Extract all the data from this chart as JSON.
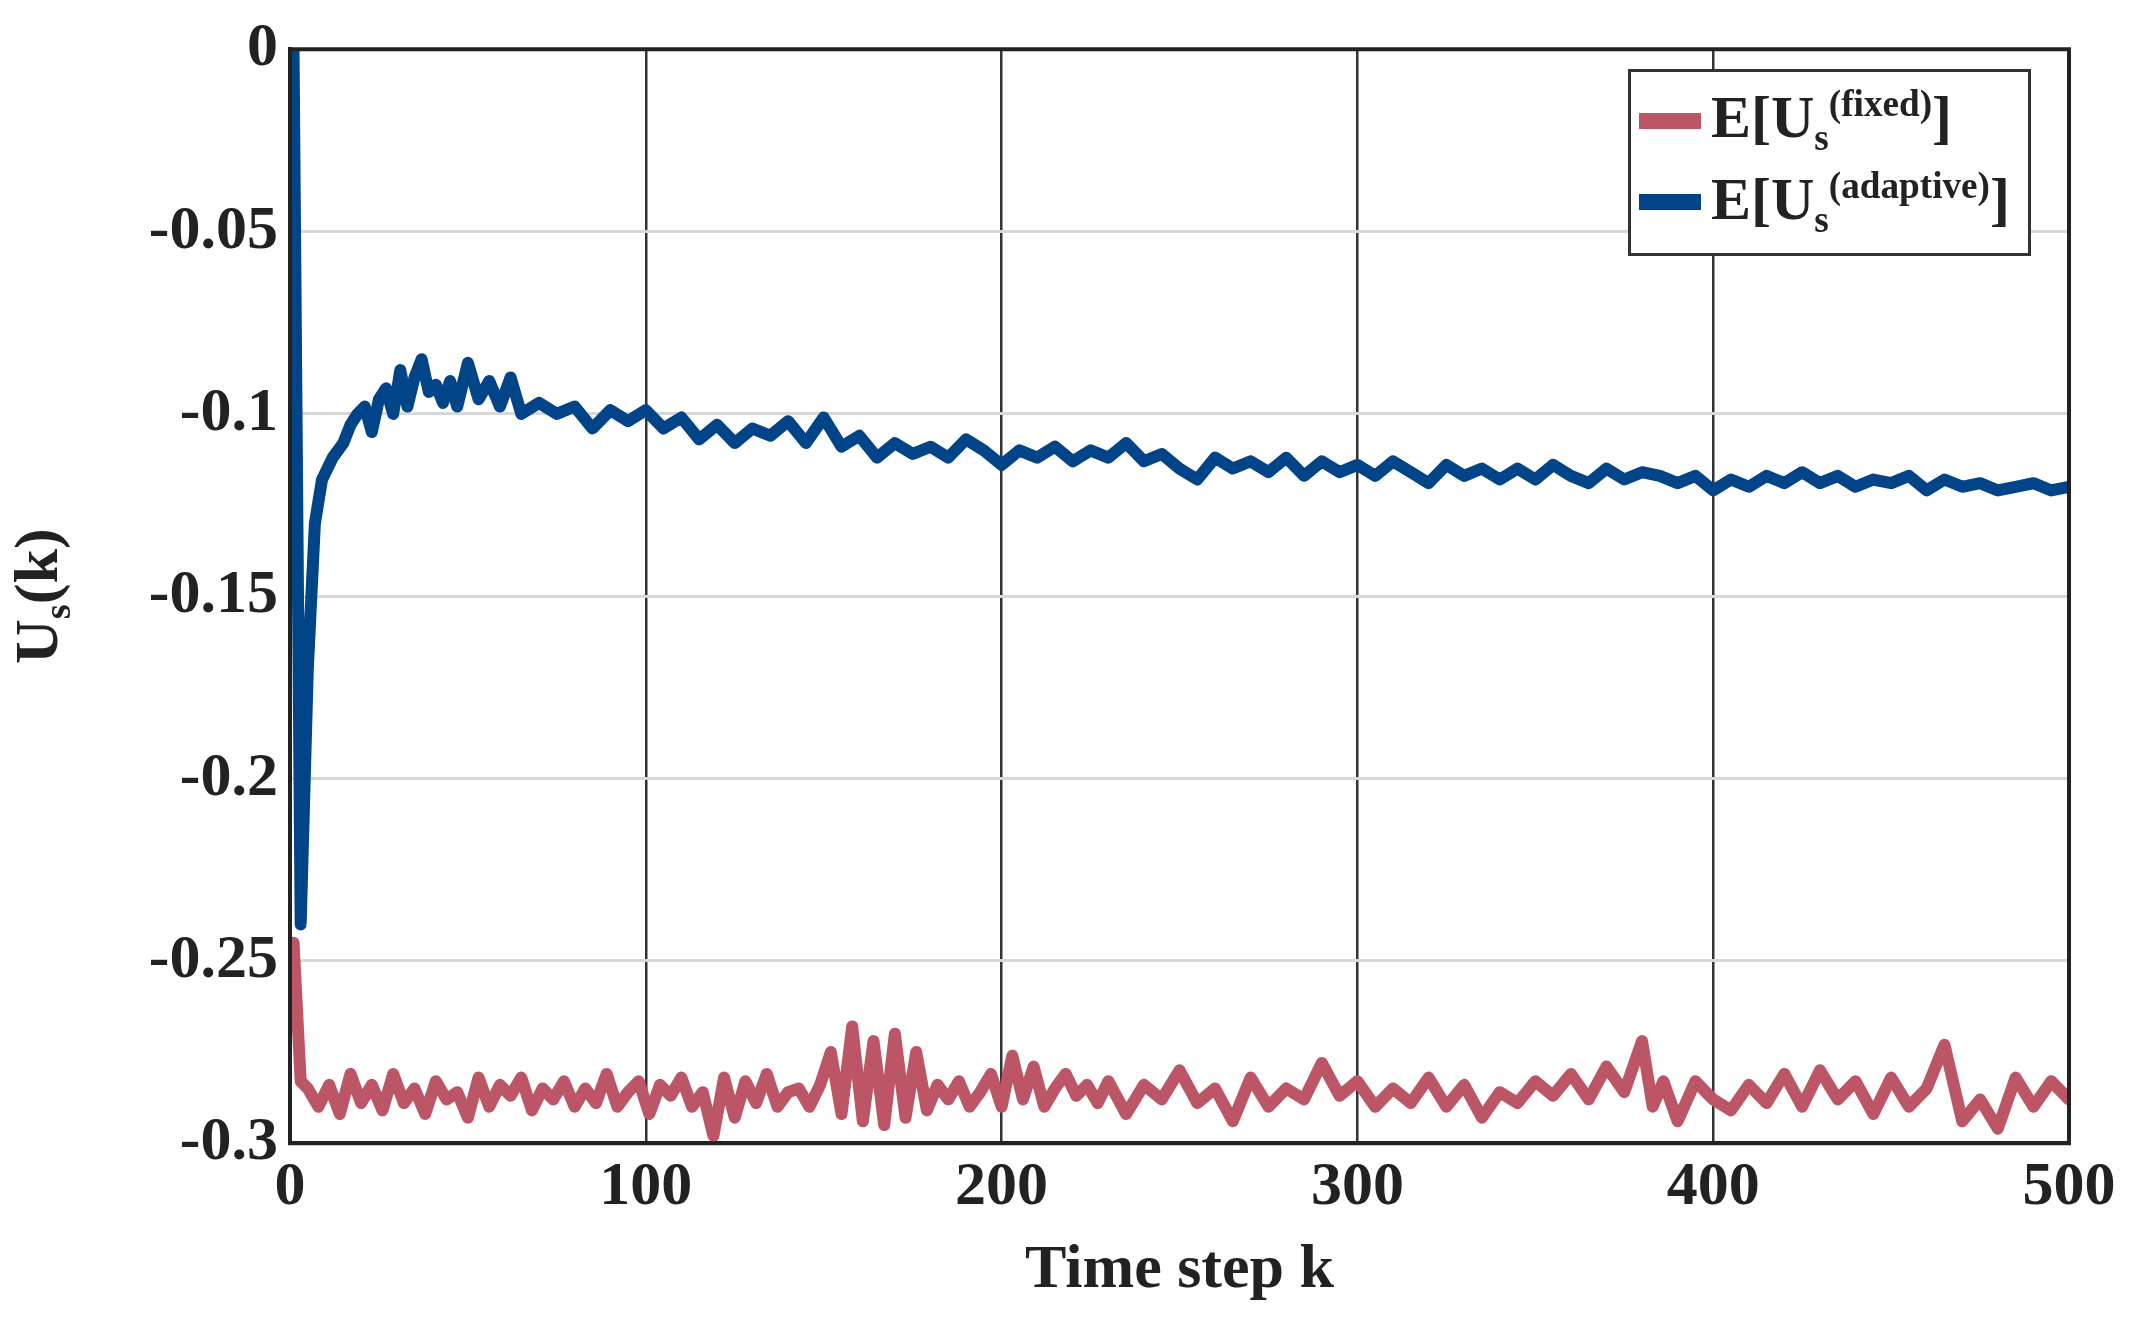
{
  "chart_data": {
    "type": "line",
    "xlabel": "Time step k",
    "ylabel": "U$_{s}$(k)",
    "xlim": [
      0,
      500
    ],
    "xticks": [
      0,
      100,
      200,
      300,
      400,
      500
    ],
    "ylim": [
      -0.3,
      0
    ],
    "yticks": [
      -0.3,
      -0.25,
      -0.2,
      -0.15,
      -0.1,
      -0.05,
      0
    ],
    "grid": true,
    "legend": "top right",
    "series": [
      {
        "name": "E[U$_{s}$$^{(fixed)}$]",
        "color": "#bc5566",
        "x": [
          1,
          3,
          5,
          8,
          11,
          14,
          17,
          20,
          23,
          26,
          29,
          32,
          35,
          38,
          41,
          44,
          47,
          50,
          53,
          56,
          59,
          62,
          65,
          68,
          71,
          74,
          77,
          80,
          83,
          86,
          89,
          92,
          95,
          98,
          101,
          104,
          107,
          110,
          113,
          116,
          119,
          122,
          125,
          128,
          131,
          134,
          137,
          140,
          143,
          146,
          149,
          152,
          155,
          158,
          161,
          164,
          167,
          170,
          173,
          176,
          179,
          182,
          185,
          188,
          191,
          194,
          197,
          200,
          203,
          206,
          209,
          212,
          215,
          218,
          221,
          224,
          227,
          230,
          235,
          240,
          245,
          250,
          255,
          260,
          265,
          270,
          275,
          280,
          285,
          290,
          295,
          300,
          305,
          310,
          315,
          320,
          325,
          330,
          335,
          340,
          345,
          350,
          355,
          360,
          365,
          370,
          375,
          380,
          383,
          386,
          390,
          395,
          400,
          405,
          410,
          415,
          420,
          425,
          430,
          435,
          440,
          445,
          450,
          455,
          460,
          465,
          470,
          475,
          480,
          485,
          490,
          495,
          500
        ],
        "values": [
          -0.245,
          -0.283,
          -0.285,
          -0.29,
          -0.284,
          -0.292,
          -0.281,
          -0.289,
          -0.284,
          -0.291,
          -0.281,
          -0.289,
          -0.285,
          -0.292,
          -0.283,
          -0.288,
          -0.286,
          -0.293,
          -0.282,
          -0.29,
          -0.284,
          -0.287,
          -0.282,
          -0.291,
          -0.285,
          -0.288,
          -0.283,
          -0.29,
          -0.285,
          -0.289,
          -0.281,
          -0.29,
          -0.286,
          -0.283,
          -0.292,
          -0.284,
          -0.287,
          -0.282,
          -0.29,
          -0.286,
          -0.298,
          -0.282,
          -0.293,
          -0.283,
          -0.289,
          -0.281,
          -0.29,
          -0.286,
          -0.285,
          -0.29,
          -0.284,
          -0.275,
          -0.292,
          -0.268,
          -0.294,
          -0.272,
          -0.295,
          -0.27,
          -0.293,
          -0.275,
          -0.291,
          -0.284,
          -0.288,
          -0.283,
          -0.29,
          -0.286,
          -0.281,
          -0.29,
          -0.276,
          -0.288,
          -0.279,
          -0.29,
          -0.285,
          -0.281,
          -0.287,
          -0.284,
          -0.289,
          -0.283,
          -0.292,
          -0.284,
          -0.288,
          -0.28,
          -0.289,
          -0.285,
          -0.294,
          -0.282,
          -0.29,
          -0.285,
          -0.288,
          -0.278,
          -0.287,
          -0.283,
          -0.29,
          -0.285,
          -0.289,
          -0.282,
          -0.29,
          -0.284,
          -0.293,
          -0.286,
          -0.289,
          -0.283,
          -0.287,
          -0.281,
          -0.288,
          -0.279,
          -0.286,
          -0.272,
          -0.29,
          -0.283,
          -0.294,
          -0.283,
          -0.288,
          -0.291,
          -0.284,
          -0.289,
          -0.281,
          -0.29,
          -0.28,
          -0.288,
          -0.283,
          -0.292,
          -0.282,
          -0.29,
          -0.285,
          -0.273,
          -0.294,
          -0.288,
          -0.296,
          -0.282,
          -0.29,
          -0.283,
          -0.288
        ]
      },
      {
        "name": "E[U$_{s}$$^{(adaptive)}$]",
        "color": "#024488",
        "x": [
          1,
          3,
          5,
          7,
          9,
          12,
          15,
          17,
          19,
          21,
          23,
          25,
          27,
          29,
          31,
          33,
          35,
          37,
          39,
          41,
          43,
          45,
          47,
          50,
          53,
          56,
          59,
          62,
          65,
          70,
          75,
          80,
          85,
          90,
          95,
          100,
          105,
          110,
          115,
          120,
          125,
          130,
          135,
          140,
          145,
          150,
          155,
          160,
          165,
          170,
          175,
          180,
          185,
          190,
          195,
          200,
          205,
          210,
          215,
          220,
          225,
          230,
          235,
          240,
          245,
          250,
          255,
          260,
          265,
          270,
          275,
          280,
          285,
          290,
          295,
          300,
          305,
          310,
          315,
          320,
          325,
          330,
          335,
          340,
          345,
          350,
          355,
          360,
          365,
          370,
          375,
          380,
          385,
          390,
          395,
          400,
          405,
          410,
          415,
          420,
          425,
          430,
          435,
          440,
          445,
          450,
          455,
          460,
          465,
          470,
          475,
          480,
          485,
          490,
          495,
          500
        ],
        "values": [
          0,
          -0.24,
          -0.17,
          -0.13,
          -0.118,
          -0.112,
          -0.108,
          -0.103,
          -0.1,
          -0.098,
          -0.105,
          -0.096,
          -0.093,
          -0.1,
          -0.088,
          -0.098,
          -0.09,
          -0.085,
          -0.094,
          -0.092,
          -0.097,
          -0.091,
          -0.098,
          -0.086,
          -0.096,
          -0.091,
          -0.098,
          -0.09,
          -0.1,
          -0.097,
          -0.1,
          -0.098,
          -0.104,
          -0.099,
          -0.102,
          -0.099,
          -0.104,
          -0.101,
          -0.107,
          -0.103,
          -0.108,
          -0.104,
          -0.106,
          -0.102,
          -0.108,
          -0.101,
          -0.109,
          -0.106,
          -0.112,
          -0.108,
          -0.111,
          -0.109,
          -0.112,
          -0.107,
          -0.11,
          -0.114,
          -0.11,
          -0.112,
          -0.109,
          -0.113,
          -0.11,
          -0.112,
          -0.108,
          -0.113,
          -0.111,
          -0.115,
          -0.118,
          -0.112,
          -0.115,
          -0.113,
          -0.116,
          -0.112,
          -0.117,
          -0.113,
          -0.116,
          -0.114,
          -0.117,
          -0.113,
          -0.116,
          -0.119,
          -0.114,
          -0.117,
          -0.115,
          -0.118,
          -0.115,
          -0.118,
          -0.114,
          -0.117,
          -0.119,
          -0.115,
          -0.118,
          -0.116,
          -0.117,
          -0.119,
          -0.117,
          -0.121,
          -0.118,
          -0.12,
          -0.117,
          -0.119,
          -0.116,
          -0.119,
          -0.117,
          -0.12,
          -0.118,
          -0.119,
          -0.117,
          -0.121,
          -0.118,
          -0.12,
          -0.119,
          -0.121,
          -0.12,
          -0.119,
          -0.121,
          -0.12
        ]
      }
    ]
  }
}
